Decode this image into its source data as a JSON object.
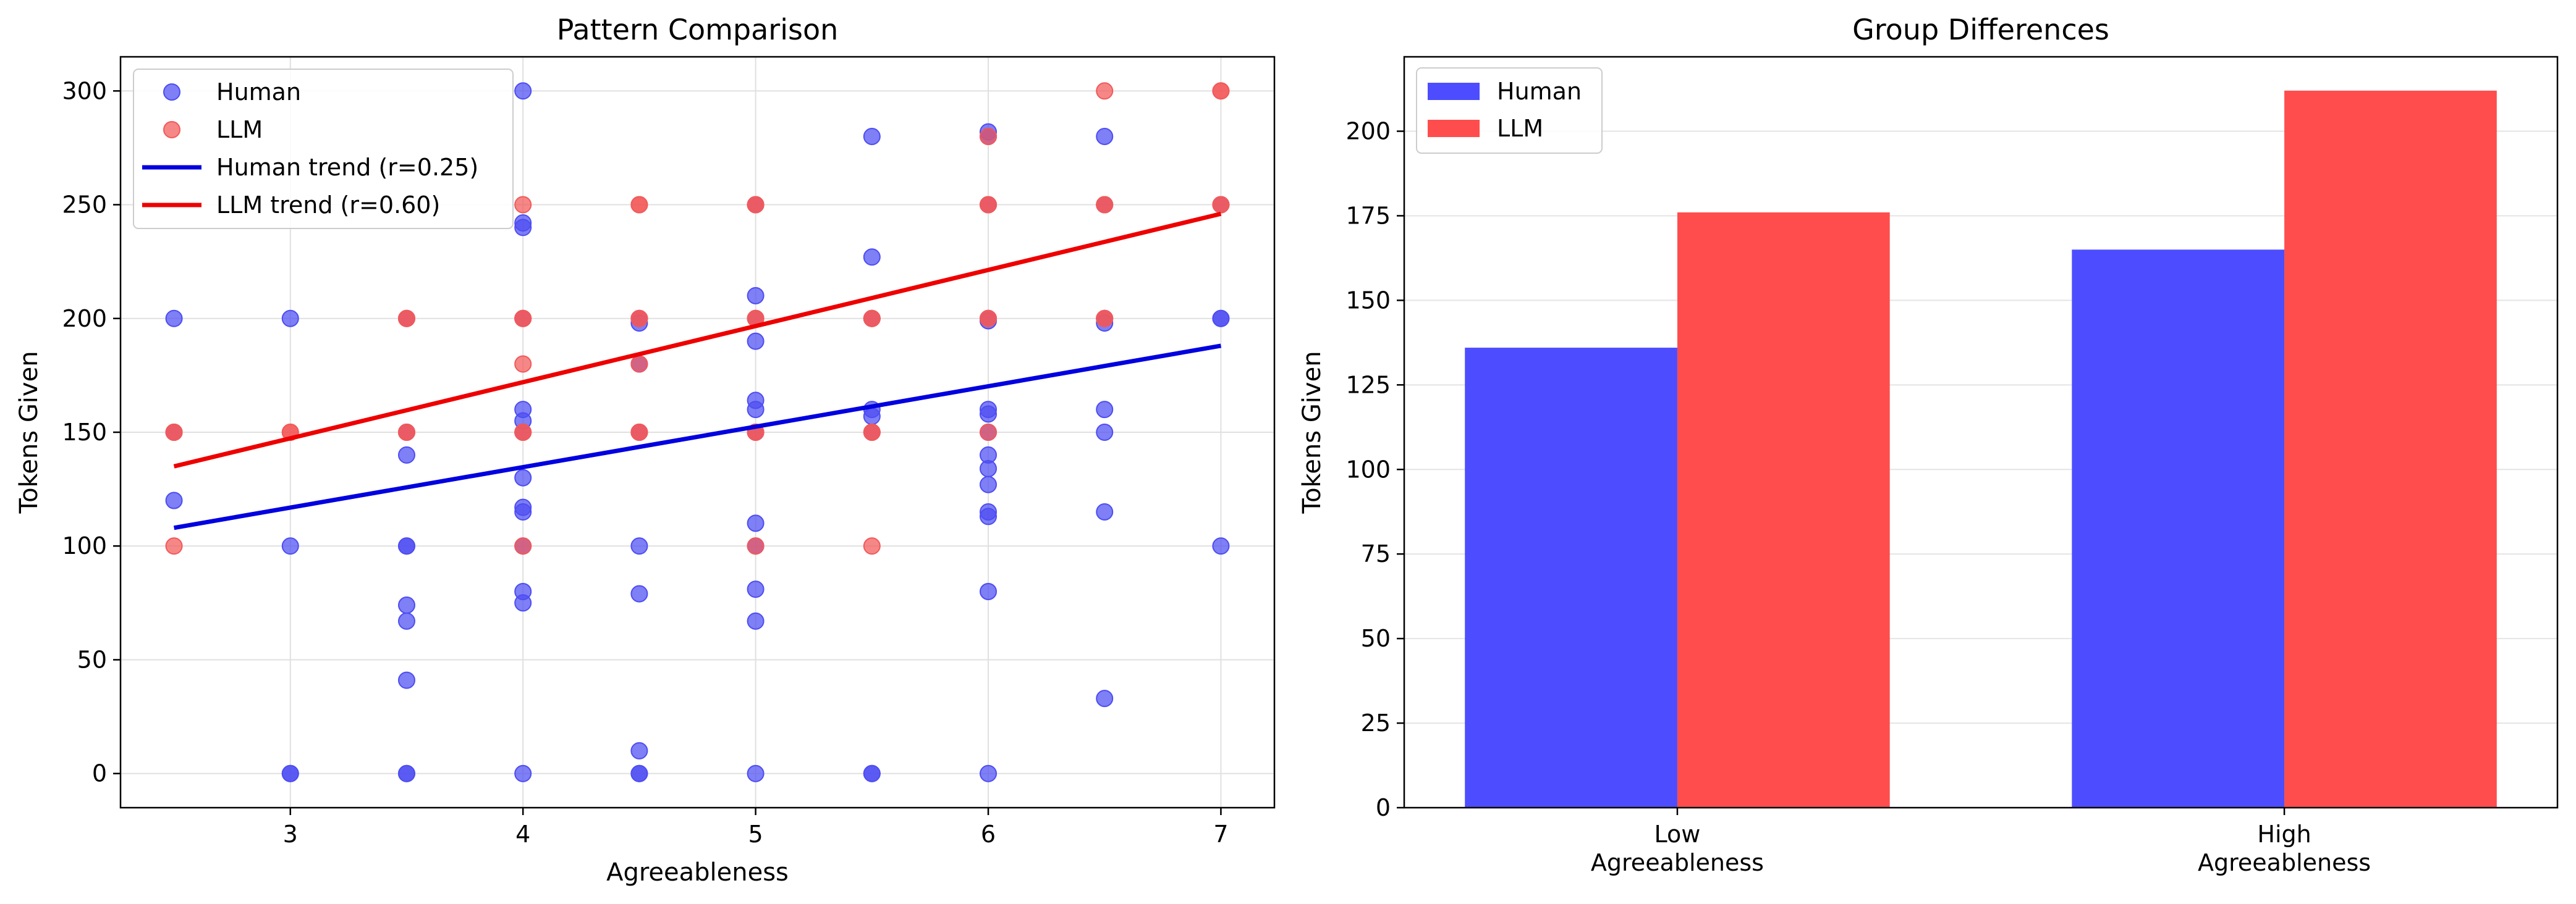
{
  "chart_data": [
    {
      "type": "scatter",
      "title": "Pattern Comparison",
      "xlabel": "Agreeableness",
      "ylabel": "Tokens Given",
      "xlim": [
        2.27,
        7.23
      ],
      "ylim": [
        -15,
        315
      ],
      "xticks": [
        3,
        4,
        5,
        6,
        7
      ],
      "yticks": [
        0,
        50,
        100,
        150,
        200,
        250,
        300
      ],
      "grid": true,
      "legend": "top-left",
      "series": [
        {
          "name": "Human",
          "kind": "scatter",
          "color": "#4d4df2",
          "points": [
            [
              2.5,
              200
            ],
            [
              2.5,
              120
            ],
            [
              2.5,
              150
            ],
            [
              3,
              200
            ],
            [
              3,
              100
            ],
            [
              3,
              0
            ],
            [
              3,
              0
            ],
            [
              3.5,
              200
            ],
            [
              3.5,
              150
            ],
            [
              3.5,
              140
            ],
            [
              3.5,
              100
            ],
            [
              3.5,
              100
            ],
            [
              3.5,
              74
            ],
            [
              3.5,
              67
            ],
            [
              3.5,
              41
            ],
            [
              3.5,
              0
            ],
            [
              3.5,
              0
            ],
            [
              4,
              300
            ],
            [
              4,
              242
            ],
            [
              4,
              240
            ],
            [
              4,
              200
            ],
            [
              4,
              160
            ],
            [
              4,
              155
            ],
            [
              4,
              150
            ],
            [
              4,
              130
            ],
            [
              4,
              117
            ],
            [
              4,
              115
            ],
            [
              4,
              100
            ],
            [
              4,
              80
            ],
            [
              4,
              75
            ],
            [
              4,
              0
            ],
            [
              4.5,
              200
            ],
            [
              4.5,
              198
            ],
            [
              4.5,
              180
            ],
            [
              4.5,
              150
            ],
            [
              4.5,
              100
            ],
            [
              4.5,
              79
            ],
            [
              4.5,
              10
            ],
            [
              4.5,
              0
            ],
            [
              4.5,
              0
            ],
            [
              5,
              250
            ],
            [
              5,
              210
            ],
            [
              5,
              200
            ],
            [
              5,
              190
            ],
            [
              5,
              164
            ],
            [
              5,
              160
            ],
            [
              5,
              150
            ],
            [
              5,
              110
            ],
            [
              5,
              100
            ],
            [
              5,
              81
            ],
            [
              5,
              67
            ],
            [
              5,
              0
            ],
            [
              5.5,
              280
            ],
            [
              5.5,
              227
            ],
            [
              5.5,
              200
            ],
            [
              5.5,
              160
            ],
            [
              5.5,
              157
            ],
            [
              5.5,
              150
            ],
            [
              5.5,
              0
            ],
            [
              5.5,
              0
            ],
            [
              6,
              282
            ],
            [
              6,
              280
            ],
            [
              6,
              250
            ],
            [
              6,
              200
            ],
            [
              6,
              199
            ],
            [
              6,
              160
            ],
            [
              6,
              158
            ],
            [
              6,
              150
            ],
            [
              6,
              140
            ],
            [
              6,
              134
            ],
            [
              6,
              127
            ],
            [
              6,
              115
            ],
            [
              6,
              113
            ],
            [
              6,
              80
            ],
            [
              6,
              0
            ],
            [
              6.5,
              280
            ],
            [
              6.5,
              250
            ],
            [
              6.5,
              200
            ],
            [
              6.5,
              198
            ],
            [
              6.5,
              160
            ],
            [
              6.5,
              150
            ],
            [
              6.5,
              115
            ],
            [
              6.5,
              33
            ],
            [
              7,
              250
            ],
            [
              7,
              200
            ],
            [
              7,
              200
            ],
            [
              7,
              100
            ]
          ]
        },
        {
          "name": "LLM",
          "kind": "scatter",
          "color": "#f25959",
          "points": [
            [
              2.5,
              150
            ],
            [
              2.5,
              150
            ],
            [
              2.5,
              100
            ],
            [
              3,
              150
            ],
            [
              3,
              150
            ],
            [
              3.5,
              200
            ],
            [
              3.5,
              200
            ],
            [
              3.5,
              150
            ],
            [
              3.5,
              150
            ],
            [
              4,
              250
            ],
            [
              4,
              200
            ],
            [
              4,
              200
            ],
            [
              4,
              180
            ],
            [
              4,
              150
            ],
            [
              4,
              150
            ],
            [
              4,
              100
            ],
            [
              4.5,
              250
            ],
            [
              4.5,
              250
            ],
            [
              4.5,
              200
            ],
            [
              4.5,
              200
            ],
            [
              4.5,
              180
            ],
            [
              4.5,
              150
            ],
            [
              4.5,
              150
            ],
            [
              5,
              250
            ],
            [
              5,
              250
            ],
            [
              5,
              200
            ],
            [
              5,
              200
            ],
            [
              5,
              150
            ],
            [
              5,
              150
            ],
            [
              5,
              100
            ],
            [
              5.5,
              200
            ],
            [
              5.5,
              200
            ],
            [
              5.5,
              150
            ],
            [
              5.5,
              150
            ],
            [
              5.5,
              100
            ],
            [
              6,
              280
            ],
            [
              6,
              250
            ],
            [
              6,
              250
            ],
            [
              6,
              200
            ],
            [
              6,
              200
            ],
            [
              6,
              150
            ],
            [
              6.5,
              300
            ],
            [
              6.5,
              250
            ],
            [
              6.5,
              250
            ],
            [
              6.5,
              200
            ],
            [
              6.5,
              200
            ],
            [
              7,
              300
            ],
            [
              7,
              300
            ],
            [
              7,
              250
            ],
            [
              7,
              250
            ]
          ]
        },
        {
          "name": "Human trend (r=0.25)",
          "kind": "line",
          "color": "#0000e0",
          "points": [
            [
              2.5,
              108
            ],
            [
              7,
              188
            ]
          ]
        },
        {
          "name": "LLM trend (r=0.60)",
          "kind": "line",
          "color": "#ee0000",
          "points": [
            [
              2.5,
              135
            ],
            [
              7,
              246
            ]
          ]
        }
      ]
    },
    {
      "type": "bar",
      "title": "Group Differences",
      "xlabel": "",
      "ylabel": "Tokens Given",
      "ylim": [
        0,
        222
      ],
      "yticks": [
        0,
        25,
        50,
        75,
        100,
        125,
        150,
        175,
        200
      ],
      "categories": [
        "Low\nAgreeableness",
        "High\nAgreeableness"
      ],
      "grid": true,
      "legend": "top-left",
      "series": [
        {
          "name": "Human",
          "color": "#4d4dff",
          "values": [
            136,
            165
          ]
        },
        {
          "name": "LLM",
          "color": "#ff4d4d",
          "values": [
            176,
            212
          ]
        }
      ]
    }
  ]
}
